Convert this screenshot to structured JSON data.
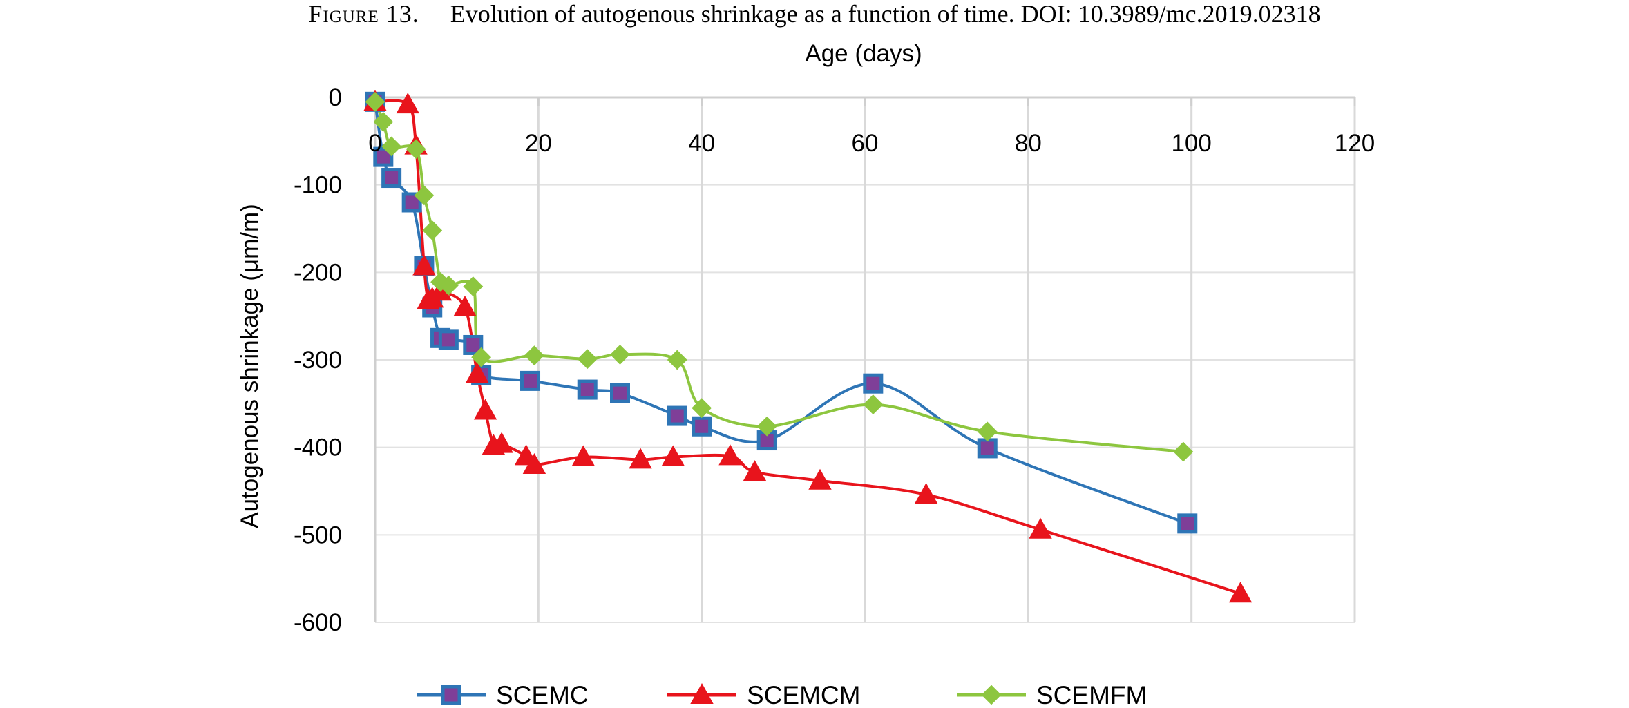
{
  "caption": {
    "figure_label": "Figure 13.",
    "text": "Evolution of autogenous shrinkage as a function of time. DOI: 10.3989/mc.2019.02318"
  },
  "chart_data": {
    "type": "line",
    "title": "",
    "xlabel": "Age (days)",
    "ylabel": "Autogenous shrinkage (μm/m)",
    "xlim": [
      0,
      120
    ],
    "ylim": [
      -600,
      0
    ],
    "x_ticks": [
      0,
      20,
      40,
      60,
      80,
      100,
      120
    ],
    "y_ticks": [
      0,
      -100,
      -200,
      -300,
      -400,
      -500,
      -600
    ],
    "x_axis_position": "top",
    "grid": true,
    "legend_position": "bottom",
    "smooth": true,
    "series": [
      {
        "name": "SCEMC",
        "color": "#2E75B6",
        "marker": "square",
        "marker_fill": "#7F3F98",
        "points": [
          [
            0,
            -5
          ],
          [
            1,
            -68
          ],
          [
            2,
            -92
          ],
          [
            4.5,
            -120
          ],
          [
            6,
            -193
          ],
          [
            7,
            -240
          ],
          [
            8,
            -275
          ],
          [
            9,
            -277
          ],
          [
            12,
            -283
          ],
          [
            13,
            -317
          ],
          [
            19,
            -324
          ],
          [
            26,
            -334
          ],
          [
            30,
            -338
          ],
          [
            37,
            -364
          ],
          [
            40,
            -376
          ],
          [
            48,
            -392
          ],
          [
            61,
            -327
          ],
          [
            75,
            -401
          ],
          [
            99.5,
            -487
          ]
        ]
      },
      {
        "name": "SCEMCM",
        "color": "#E8141C",
        "marker": "triangle",
        "marker_fill": "#E8141C",
        "points": [
          [
            0,
            -5
          ],
          [
            4,
            -8
          ],
          [
            5,
            -55
          ],
          [
            6,
            -193
          ],
          [
            6.5,
            -232
          ],
          [
            7,
            -230
          ],
          [
            8,
            -222
          ],
          [
            11,
            -240
          ],
          [
            12.5,
            -316
          ],
          [
            13.5,
            -358
          ],
          [
            14.5,
            -398
          ],
          [
            15.5,
            -396
          ],
          [
            18.5,
            -410
          ],
          [
            19.5,
            -420
          ],
          [
            25.5,
            -411
          ],
          [
            32.5,
            -414
          ],
          [
            36.5,
            -411
          ],
          [
            43.5,
            -410
          ],
          [
            46.5,
            -428
          ],
          [
            54.5,
            -438
          ],
          [
            67.5,
            -454
          ],
          [
            81.5,
            -494
          ],
          [
            106,
            -567
          ]
        ]
      },
      {
        "name": "SCEMFM",
        "color": "#8DC63F",
        "marker": "diamond",
        "marker_fill": "#8DC63F",
        "points": [
          [
            0,
            -5
          ],
          [
            1,
            -28
          ],
          [
            2,
            -56
          ],
          [
            5,
            -59
          ],
          [
            6,
            -112
          ],
          [
            7,
            -152
          ],
          [
            8,
            -211
          ],
          [
            9,
            -215
          ],
          [
            12,
            -216
          ],
          [
            13,
            -297
          ],
          [
            19.5,
            -295
          ],
          [
            26,
            -299
          ],
          [
            30,
            -294
          ],
          [
            37,
            -300
          ],
          [
            40,
            -355
          ],
          [
            48,
            -376
          ],
          [
            61,
            -351
          ],
          [
            75,
            -382
          ],
          [
            99,
            -405
          ]
        ]
      }
    ]
  }
}
